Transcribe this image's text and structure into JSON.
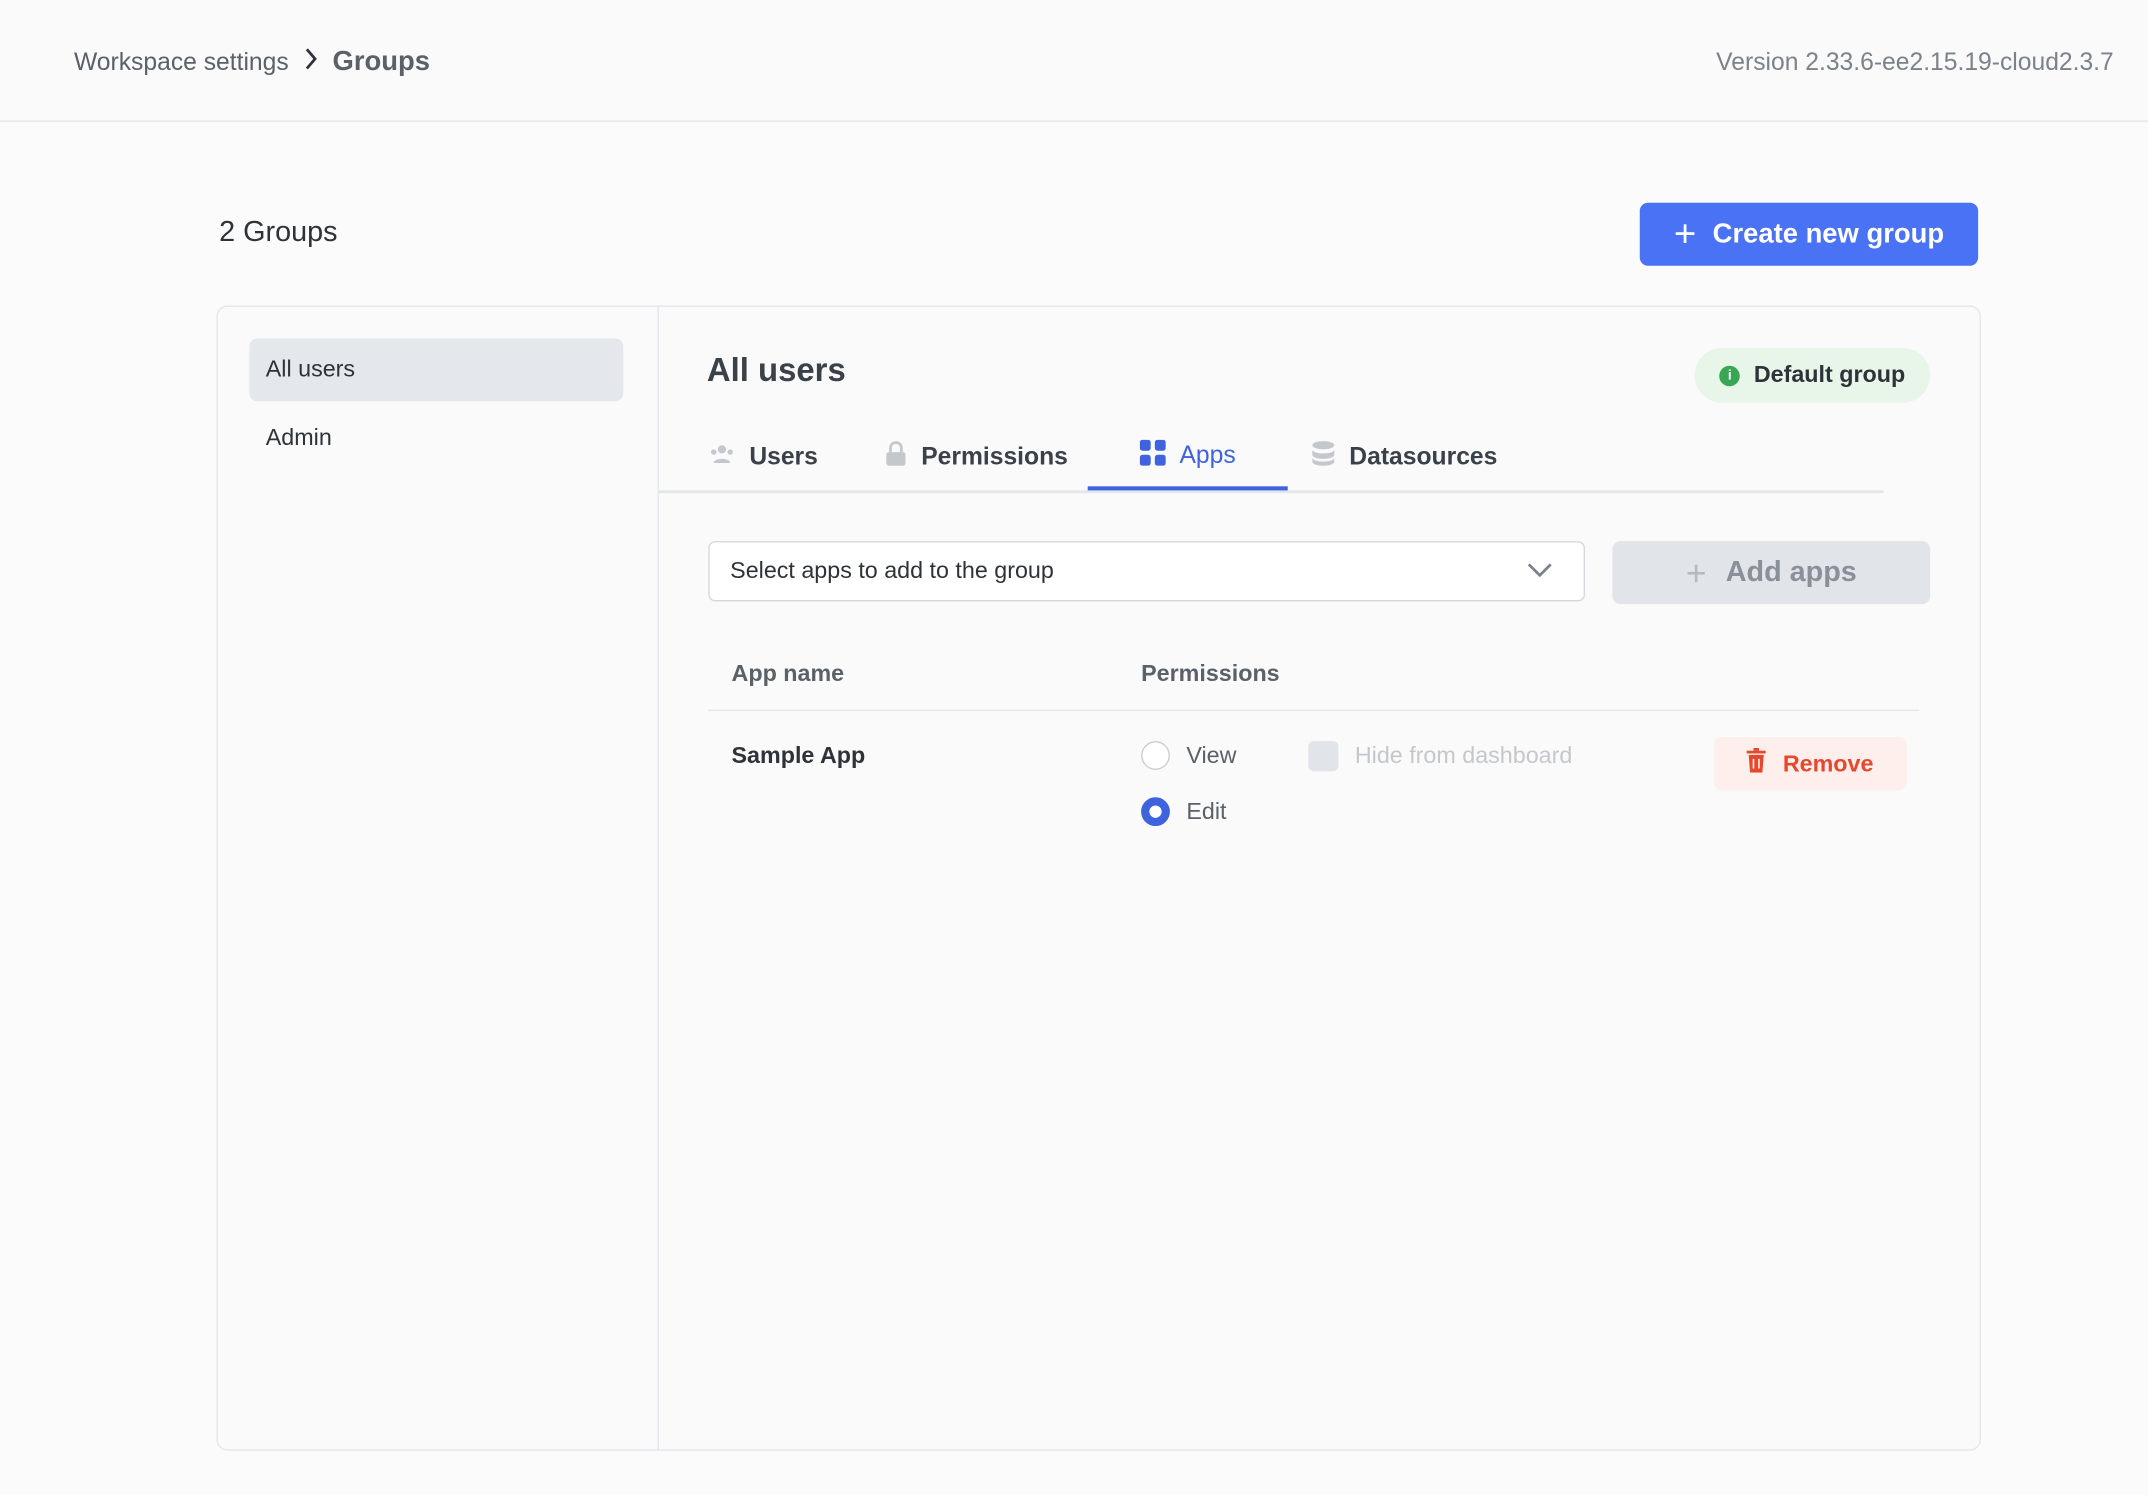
{
  "header": {
    "breadcrumb": [
      "Workspace settings",
      "Groups"
    ],
    "version": "Version 2.33.6-ee2.15.19-cloud2.3.7"
  },
  "groups_count": "2 Groups",
  "create_button": "Create new group",
  "groups": [
    {
      "label": "All users",
      "active": true
    },
    {
      "label": "Admin",
      "active": false
    }
  ],
  "detail": {
    "title": "All users",
    "badge": "Default group",
    "tabs": [
      {
        "label": "Users",
        "icon": "users-icon"
      },
      {
        "label": "Permissions",
        "icon": "lock-icon"
      },
      {
        "label": "Apps",
        "icon": "apps-grid-icon",
        "active": true
      },
      {
        "label": "Datasources",
        "icon": "database-icon"
      }
    ],
    "select_placeholder": "Select apps to add to the group",
    "add_button": "Add apps",
    "table": {
      "headers": [
        "App name",
        "Permissions"
      ],
      "rows": [
        {
          "name": "Sample App",
          "options": [
            "View",
            "Edit"
          ],
          "selected": "Edit",
          "hide_label": "Hide from dashboard",
          "hide_checked": false,
          "remove_label": "Remove"
        }
      ]
    }
  },
  "colors": {
    "accent": "#3e63dd",
    "primary_button": "#4a72f5",
    "danger": "#e5482d",
    "success": "#3aa655"
  }
}
